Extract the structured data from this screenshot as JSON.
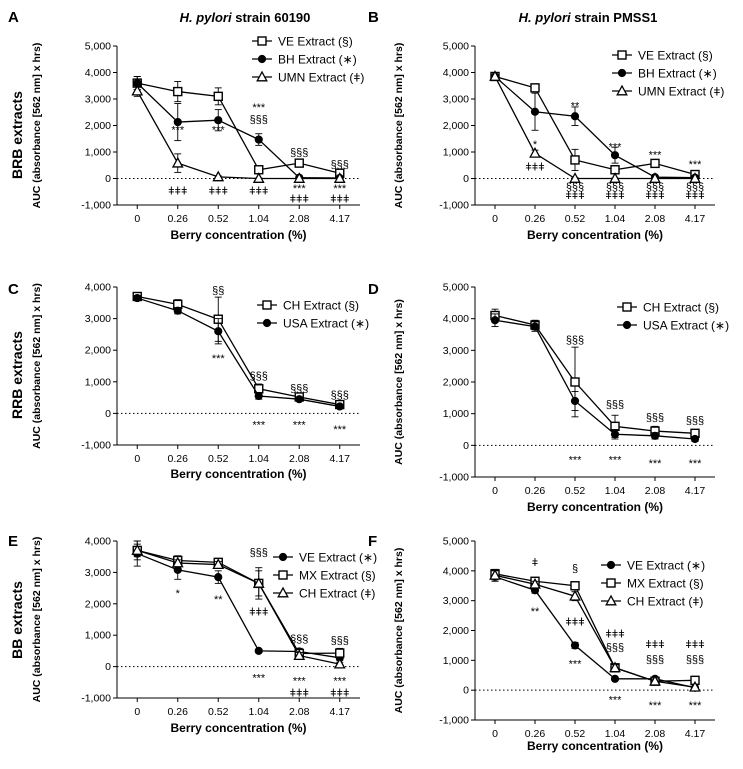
{
  "figure": {
    "row_labels": [
      "BRB extracts",
      "RRB extracts",
      "BB extracts"
    ]
  },
  "chart_data": [
    {
      "id": "A",
      "type": "line",
      "panel_label": "A",
      "title_italic": "H. pylori",
      "title_rest": "strain 60190",
      "xlabel": "Berry concentration (%)",
      "ylabel": "AUC (absorbance [562 nm] x hrs)",
      "categories": [
        "0",
        "0.26",
        "0.52",
        "1.04",
        "2.08",
        "4.17"
      ],
      "ylim": [
        -1000,
        5000
      ],
      "yticks": [
        "-1,000",
        "0",
        "1,000",
        "2,000",
        "3,000",
        "4,000",
        "5,000"
      ],
      "series": [
        {
          "name": "VE Extract",
          "sym": "(§)",
          "marker": "square",
          "values": [
            3600,
            3280,
            3100,
            330,
            580,
            200
          ],
          "err": [
            250,
            380,
            320,
            120,
            90,
            80
          ]
        },
        {
          "name": "BH Extract",
          "sym": "(∗)",
          "marker": "circle",
          "values": [
            3600,
            2130,
            2200,
            1470,
            30,
            20
          ],
          "err": [
            250,
            700,
            400,
            220,
            40,
            30
          ]
        },
        {
          "name": "UMN Extract",
          "sym": "(ǂ)",
          "marker": "triangle",
          "values": [
            3300,
            580,
            60,
            0,
            0,
            0
          ],
          "err": [
            200,
            350,
            40,
            20,
            20,
            20
          ]
        }
      ],
      "annotations": [
        {
          "cat": 1,
          "y": 1850,
          "text": "***"
        },
        {
          "cat": 1,
          "y": -450,
          "text": "ǂǂǂ"
        },
        {
          "cat": 2,
          "y": 1850,
          "text": "***"
        },
        {
          "cat": 2,
          "y": -450,
          "text": "ǂǂǂ"
        },
        {
          "cat": 3,
          "y": 2700,
          "text": "***"
        },
        {
          "cat": 3,
          "y": 2250,
          "text": "§§§"
        },
        {
          "cat": 3,
          "y": -450,
          "text": "ǂǂǂ"
        },
        {
          "cat": 4,
          "y": 1000,
          "text": "§§§"
        },
        {
          "cat": 4,
          "y": -350,
          "text": "***"
        },
        {
          "cat": 4,
          "y": -750,
          "text": "ǂǂǂ"
        },
        {
          "cat": 5,
          "y": 550,
          "text": "§§§"
        },
        {
          "cat": 5,
          "y": -350,
          "text": "***"
        },
        {
          "cat": 5,
          "y": -750,
          "text": "ǂǂǂ"
        }
      ]
    },
    {
      "id": "B",
      "type": "line",
      "panel_label": "B",
      "title_italic": "H. pylori",
      "title_rest": "strain PMSS1",
      "xlabel": "Berry concentration (%)",
      "ylabel": "AUC (absorbance [562 nm] x hrs)",
      "categories": [
        "0",
        "0.26",
        "0.52",
        "1.04",
        "2.08",
        "4.17"
      ],
      "ylim": [
        -1000,
        5000
      ],
      "yticks": [
        "-1,000",
        "0",
        "1,000",
        "2,000",
        "3,000",
        "4,000",
        "5,000"
      ],
      "series": [
        {
          "name": "VE Extract",
          "sym": "(§)",
          "marker": "square",
          "values": [
            3850,
            3420,
            700,
            330,
            570,
            150
          ],
          "err": [
            150,
            150,
            400,
            150,
            80,
            60
          ]
        },
        {
          "name": "BH Extract",
          "sym": "(∗)",
          "marker": "circle",
          "values": [
            3850,
            2520,
            2350,
            880,
            50,
            30
          ],
          "err": [
            150,
            700,
            350,
            300,
            40,
            30
          ]
        },
        {
          "name": "UMN Extract",
          "sym": "(ǂ)",
          "marker": "triangle",
          "values": [
            3850,
            950,
            0,
            0,
            0,
            0
          ],
          "err": [
            150,
            120,
            30,
            20,
            20,
            20
          ]
        }
      ],
      "annotations": [
        {
          "cat": 1,
          "y": 1300,
          "text": "*"
        },
        {
          "cat": 1,
          "y": 450,
          "text": "ǂǂǂ"
        },
        {
          "cat": 2,
          "y": 2750,
          "text": "**"
        },
        {
          "cat": 2,
          "y": -300,
          "text": "§§§"
        },
        {
          "cat": 2,
          "y": -620,
          "text": "ǂǂǂ"
        },
        {
          "cat": 3,
          "y": 1200,
          "text": "***"
        },
        {
          "cat": 3,
          "y": -300,
          "text": "§§§"
        },
        {
          "cat": 3,
          "y": -620,
          "text": "ǂǂǂ"
        },
        {
          "cat": 4,
          "y": 900,
          "text": "***"
        },
        {
          "cat": 4,
          "y": -300,
          "text": "§§§"
        },
        {
          "cat": 4,
          "y": -620,
          "text": "ǂǂǂ"
        },
        {
          "cat": 5,
          "y": 550,
          "text": "***"
        },
        {
          "cat": 5,
          "y": -300,
          "text": "§§§"
        },
        {
          "cat": 5,
          "y": -620,
          "text": "ǂǂǂ"
        }
      ]
    },
    {
      "id": "C",
      "type": "line",
      "panel_label": "C",
      "title_italic": "",
      "title_rest": "",
      "xlabel": "Berry concentration (%)",
      "ylabel": "AUC (absorbance [562 nm] x hrs)",
      "categories": [
        "0",
        "0.26",
        "0.52",
        "1.04",
        "2.08",
        "4.17"
      ],
      "ylim": [
        -1000,
        4000
      ],
      "yticks": [
        "-1,000",
        "0",
        "1,000",
        "2,000",
        "3,000",
        "4,000"
      ],
      "series": [
        {
          "name": "CH Extract",
          "sym": "(§)",
          "marker": "square",
          "values": [
            3700,
            3450,
            2980,
            780,
            520,
            280
          ],
          "err": [
            80,
            150,
            700,
            150,
            80,
            60
          ]
        },
        {
          "name": "USA Extract",
          "sym": "(∗)",
          "marker": "circle",
          "values": [
            3650,
            3250,
            2600,
            550,
            450,
            220
          ],
          "err": [
            80,
            100,
            400,
            100,
            60,
            40
          ]
        }
      ],
      "annotations": [
        {
          "cat": 2,
          "y": 3900,
          "text": "§§"
        },
        {
          "cat": 2,
          "y": 1750,
          "text": "***"
        },
        {
          "cat": 3,
          "y": 1200,
          "text": "§§§"
        },
        {
          "cat": 3,
          "y": -350,
          "text": "***"
        },
        {
          "cat": 4,
          "y": 800,
          "text": "§§§"
        },
        {
          "cat": 4,
          "y": -350,
          "text": "***"
        },
        {
          "cat": 5,
          "y": 600,
          "text": "§§§"
        },
        {
          "cat": 5,
          "y": -500,
          "text": "***"
        }
      ]
    },
    {
      "id": "D",
      "type": "line",
      "panel_label": "D",
      "title_italic": "",
      "title_rest": "",
      "xlabel": "Berry concentration (%)",
      "ylabel": "AUC (absorbance [562 nm] x hrs)",
      "categories": [
        "0",
        "0.26",
        "0.52",
        "1.04",
        "2.08",
        "4.17"
      ],
      "ylim": [
        -1000,
        5000
      ],
      "yticks": [
        "-1,000",
        "0",
        "1,000",
        "2,000",
        "3,000",
        "4,000",
        "5,000"
      ],
      "series": [
        {
          "name": "CH Extract",
          "sym": "(§)",
          "marker": "square",
          "values": [
            4100,
            3800,
            2000,
            600,
            450,
            380
          ],
          "err": [
            200,
            150,
            1100,
            350,
            150,
            120
          ]
        },
        {
          "name": "USA Extract",
          "sym": "(∗)",
          "marker": "circle",
          "values": [
            3950,
            3750,
            1400,
            350,
            300,
            200
          ],
          "err": [
            200,
            150,
            300,
            150,
            100,
            80
          ]
        }
      ],
      "annotations": [
        {
          "cat": 2,
          "y": 3350,
          "text": "§§§"
        },
        {
          "cat": 2,
          "y": -450,
          "text": "***"
        },
        {
          "cat": 3,
          "y": 1300,
          "text": "§§§"
        },
        {
          "cat": 3,
          "y": -450,
          "text": "***"
        },
        {
          "cat": 4,
          "y": 900,
          "text": "§§§"
        },
        {
          "cat": 4,
          "y": -550,
          "text": "***"
        },
        {
          "cat": 5,
          "y": 800,
          "text": "§§§"
        },
        {
          "cat": 5,
          "y": -550,
          "text": "***"
        }
      ]
    },
    {
      "id": "E",
      "type": "line",
      "panel_label": "E",
      "title_italic": "",
      "title_rest": "",
      "xlabel": "Berry concentration (%)",
      "ylabel": "AUC (absorbance [562 nm] x hrs)",
      "categories": [
        "0",
        "0.26",
        "0.52",
        "1.04",
        "2.08",
        "4.17"
      ],
      "ylim": [
        -1000,
        4000
      ],
      "yticks": [
        "-1,000",
        "0",
        "1,000",
        "2,000",
        "3,000",
        "4,000"
      ],
      "series": [
        {
          "name": "VE Extract",
          "sym": "(∗)",
          "marker": "circle",
          "values": [
            3600,
            3080,
            2850,
            500,
            480,
            280
          ],
          "err": [
            400,
            300,
            200,
            50,
            100,
            80
          ]
        },
        {
          "name": "MX Extract",
          "sym": "(§)",
          "marker": "square",
          "values": [
            3700,
            3380,
            3320,
            2650,
            420,
            430
          ],
          "err": [
            300,
            150,
            100,
            500,
            100,
            150
          ]
        },
        {
          "name": "CH Extract",
          "sym": "(ǂ)",
          "marker": "triangle",
          "values": [
            3700,
            3300,
            3250,
            2650,
            350,
            80
          ],
          "err": [
            200,
            100,
            100,
            400,
            100,
            60
          ]
        }
      ],
      "annotations": [
        {
          "cat": 1,
          "y": 2350,
          "text": "*"
        },
        {
          "cat": 2,
          "y": 2150,
          "text": "**"
        },
        {
          "cat": 3,
          "y": 3650,
          "text": "§§§"
        },
        {
          "cat": 3,
          "y": 1750,
          "text": "ǂǂǂ"
        },
        {
          "cat": 3,
          "y": -350,
          "text": "***"
        },
        {
          "cat": 4,
          "y": 900,
          "text": "§§§"
        },
        {
          "cat": 4,
          "y": -450,
          "text": "***"
        },
        {
          "cat": 4,
          "y": -820,
          "text": "ǂǂǂ"
        },
        {
          "cat": 5,
          "y": 850,
          "text": "§§§"
        },
        {
          "cat": 5,
          "y": -450,
          "text": "***"
        },
        {
          "cat": 5,
          "y": -820,
          "text": "ǂǂǂ"
        }
      ]
    },
    {
      "id": "F",
      "type": "line",
      "panel_label": "F",
      "title_italic": "",
      "title_rest": "",
      "xlabel": "Berry concentration (%)",
      "ylabel": "AUC (absorbance [562 nm] x hrs)",
      "categories": [
        "0",
        "0.26",
        "0.52",
        "1.04",
        "2.08",
        "4.17"
      ],
      "ylim": [
        -1000,
        5000
      ],
      "yticks": [
        "-1,000",
        "0",
        "1,000",
        "2,000",
        "3,000",
        "4,000",
        "5,000"
      ],
      "series": [
        {
          "name": "VE Extract",
          "sym": "(∗)",
          "marker": "circle",
          "values": [
            3800,
            3350,
            1500,
            380,
            380,
            80
          ],
          "err": [
            150,
            100,
            100,
            50,
            50,
            30
          ]
        },
        {
          "name": "MX Extract",
          "sym": "(§)",
          "marker": "square",
          "values": [
            3900,
            3650,
            3500,
            750,
            300,
            330
          ],
          "err": [
            150,
            100,
            100,
            100,
            80,
            60
          ]
        },
        {
          "name": "CH Extract",
          "sym": "(ǂ)",
          "marker": "triangle",
          "values": [
            3850,
            3550,
            3150,
            750,
            300,
            100
          ],
          "err": [
            150,
            100,
            150,
            100,
            80,
            40
          ]
        }
      ],
      "annotations": [
        {
          "cat": 1,
          "y": 4300,
          "text": "ǂ"
        },
        {
          "cat": 1,
          "y": 2650,
          "text": "**"
        },
        {
          "cat": 2,
          "y": 4100,
          "text": "§"
        },
        {
          "cat": 2,
          "y": 2300,
          "text": "ǂǂǂ"
        },
        {
          "cat": 2,
          "y": 900,
          "text": "***"
        },
        {
          "cat": 3,
          "y": 1900,
          "text": "ǂǂǂ"
        },
        {
          "cat": 3,
          "y": 1450,
          "text": "§§§"
        },
        {
          "cat": 3,
          "y": -320,
          "text": "***"
        },
        {
          "cat": 4,
          "y": 1550,
          "text": "ǂǂǂ"
        },
        {
          "cat": 4,
          "y": 1050,
          "text": "§§§"
        },
        {
          "cat": 4,
          "y": -500,
          "text": "***"
        },
        {
          "cat": 5,
          "y": 1550,
          "text": "ǂǂǂ"
        },
        {
          "cat": 5,
          "y": 1050,
          "text": "§§§"
        },
        {
          "cat": 5,
          "y": -500,
          "text": "***"
        }
      ]
    }
  ]
}
